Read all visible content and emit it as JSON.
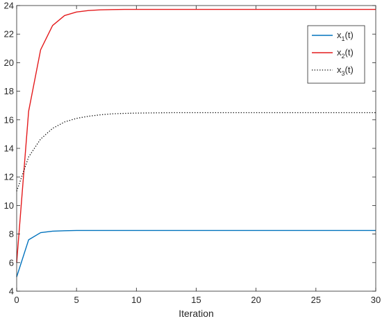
{
  "chart_data": {
    "type": "line",
    "title": "",
    "xlabel": "Iteration",
    "ylabel": "",
    "xlim": [
      0,
      30
    ],
    "ylim": [
      4,
      24
    ],
    "xticks": [
      0,
      5,
      10,
      15,
      20,
      25,
      30
    ],
    "yticks": [
      4,
      6,
      8,
      10,
      12,
      14,
      16,
      18,
      20,
      22,
      24
    ],
    "grid": false,
    "legend_position": "top-right",
    "x": [
      0,
      1,
      2,
      3,
      4,
      5,
      6,
      7,
      8,
      9,
      10,
      11,
      12,
      13,
      14,
      15,
      16,
      17,
      18,
      19,
      20,
      21,
      22,
      23,
      24,
      25,
      26,
      27,
      28,
      29,
      30
    ],
    "series": [
      {
        "name": "x1(t)",
        "label_base": "x",
        "label_sub": "1",
        "label_tail": "(t)",
        "color": "#0072BD",
        "style": "solid",
        "values": [
          5.0,
          7.6,
          8.1,
          8.2,
          8.23,
          8.25,
          8.25,
          8.25,
          8.25,
          8.25,
          8.25,
          8.25,
          8.25,
          8.25,
          8.25,
          8.25,
          8.25,
          8.25,
          8.25,
          8.25,
          8.25,
          8.25,
          8.25,
          8.25,
          8.25,
          8.25,
          8.25,
          8.25,
          8.25,
          8.25,
          8.25
        ]
      },
      {
        "name": "x2(t)",
        "label_base": "x",
        "label_sub": "2",
        "label_tail": "(t)",
        "color": "#E41A1C",
        "style": "solid",
        "values": [
          6.0,
          16.6,
          20.9,
          22.6,
          23.3,
          23.55,
          23.65,
          23.7,
          23.72,
          23.73,
          23.73,
          23.73,
          23.73,
          23.73,
          23.73,
          23.73,
          23.73,
          23.73,
          23.73,
          23.73,
          23.73,
          23.73,
          23.73,
          23.73,
          23.73,
          23.73,
          23.73,
          23.73,
          23.73,
          23.73,
          23.73
        ]
      },
      {
        "name": "x3(t)",
        "label_base": "x",
        "label_sub": "3",
        "label_tail": "(t)",
        "color": "#000000",
        "style": "dotted",
        "values": [
          11.0,
          13.4,
          14.65,
          15.4,
          15.85,
          16.1,
          16.25,
          16.35,
          16.42,
          16.45,
          16.47,
          16.48,
          16.49,
          16.5,
          16.5,
          16.5,
          16.5,
          16.5,
          16.5,
          16.5,
          16.5,
          16.5,
          16.5,
          16.5,
          16.5,
          16.5,
          16.5,
          16.5,
          16.5,
          16.5,
          16.5
        ]
      }
    ]
  }
}
